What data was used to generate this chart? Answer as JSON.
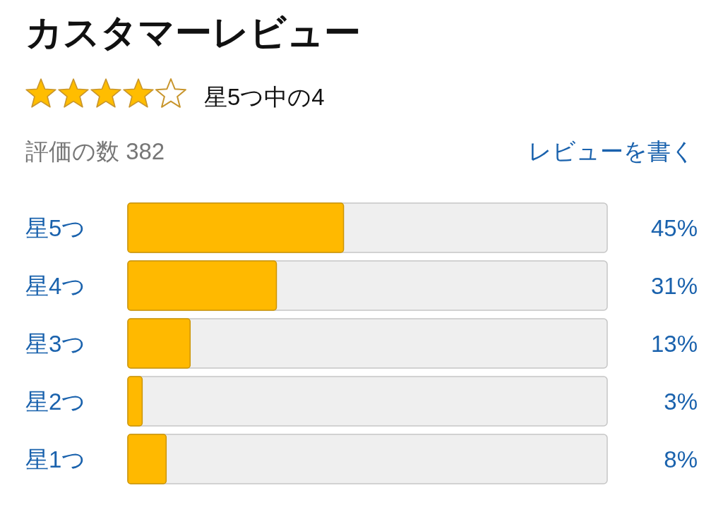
{
  "chart_data": {
    "type": "bar",
    "orientation": "horizontal",
    "title": "カスタマーレビュー",
    "subtitle": "星5つ中の4",
    "annotations": [
      "評価の数 382",
      "レビューを書く"
    ],
    "categories": [
      "星5つ",
      "星4つ",
      "星3つ",
      "星2つ",
      "星1つ"
    ],
    "values": [
      45,
      31,
      13,
      3,
      8
    ],
    "value_labels": [
      "45%",
      "31%",
      "13%",
      "3%",
      "8%"
    ],
    "color": "#ffb900",
    "xlim": [
      0,
      100
    ]
  }
}
